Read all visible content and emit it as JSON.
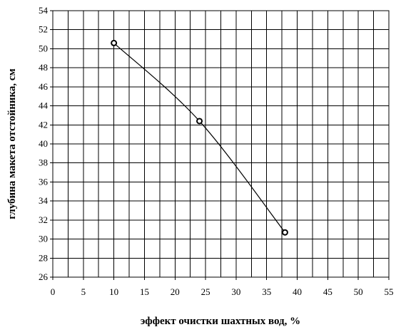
{
  "chart_data": {
    "type": "scatter",
    "xlabel": "эффект очистки шахтных вод, %",
    "ylabel": "глубина макета отстойника, см",
    "xlim": [
      0,
      55
    ],
    "ylim": [
      26,
      54
    ],
    "x_ticks": [
      0,
      5,
      10,
      15,
      20,
      25,
      30,
      35,
      40,
      45,
      50,
      55
    ],
    "y_ticks": [
      26,
      28,
      30,
      32,
      34,
      36,
      38,
      40,
      42,
      44,
      46,
      48,
      50,
      52,
      54
    ],
    "x_minor_step": 2.5,
    "grid": true,
    "smooth_line": true,
    "marker": "open-circle",
    "series": [
      {
        "x": [
          10,
          24,
          38
        ],
        "y": [
          50.6,
          42.4,
          30.7
        ]
      }
    ]
  }
}
